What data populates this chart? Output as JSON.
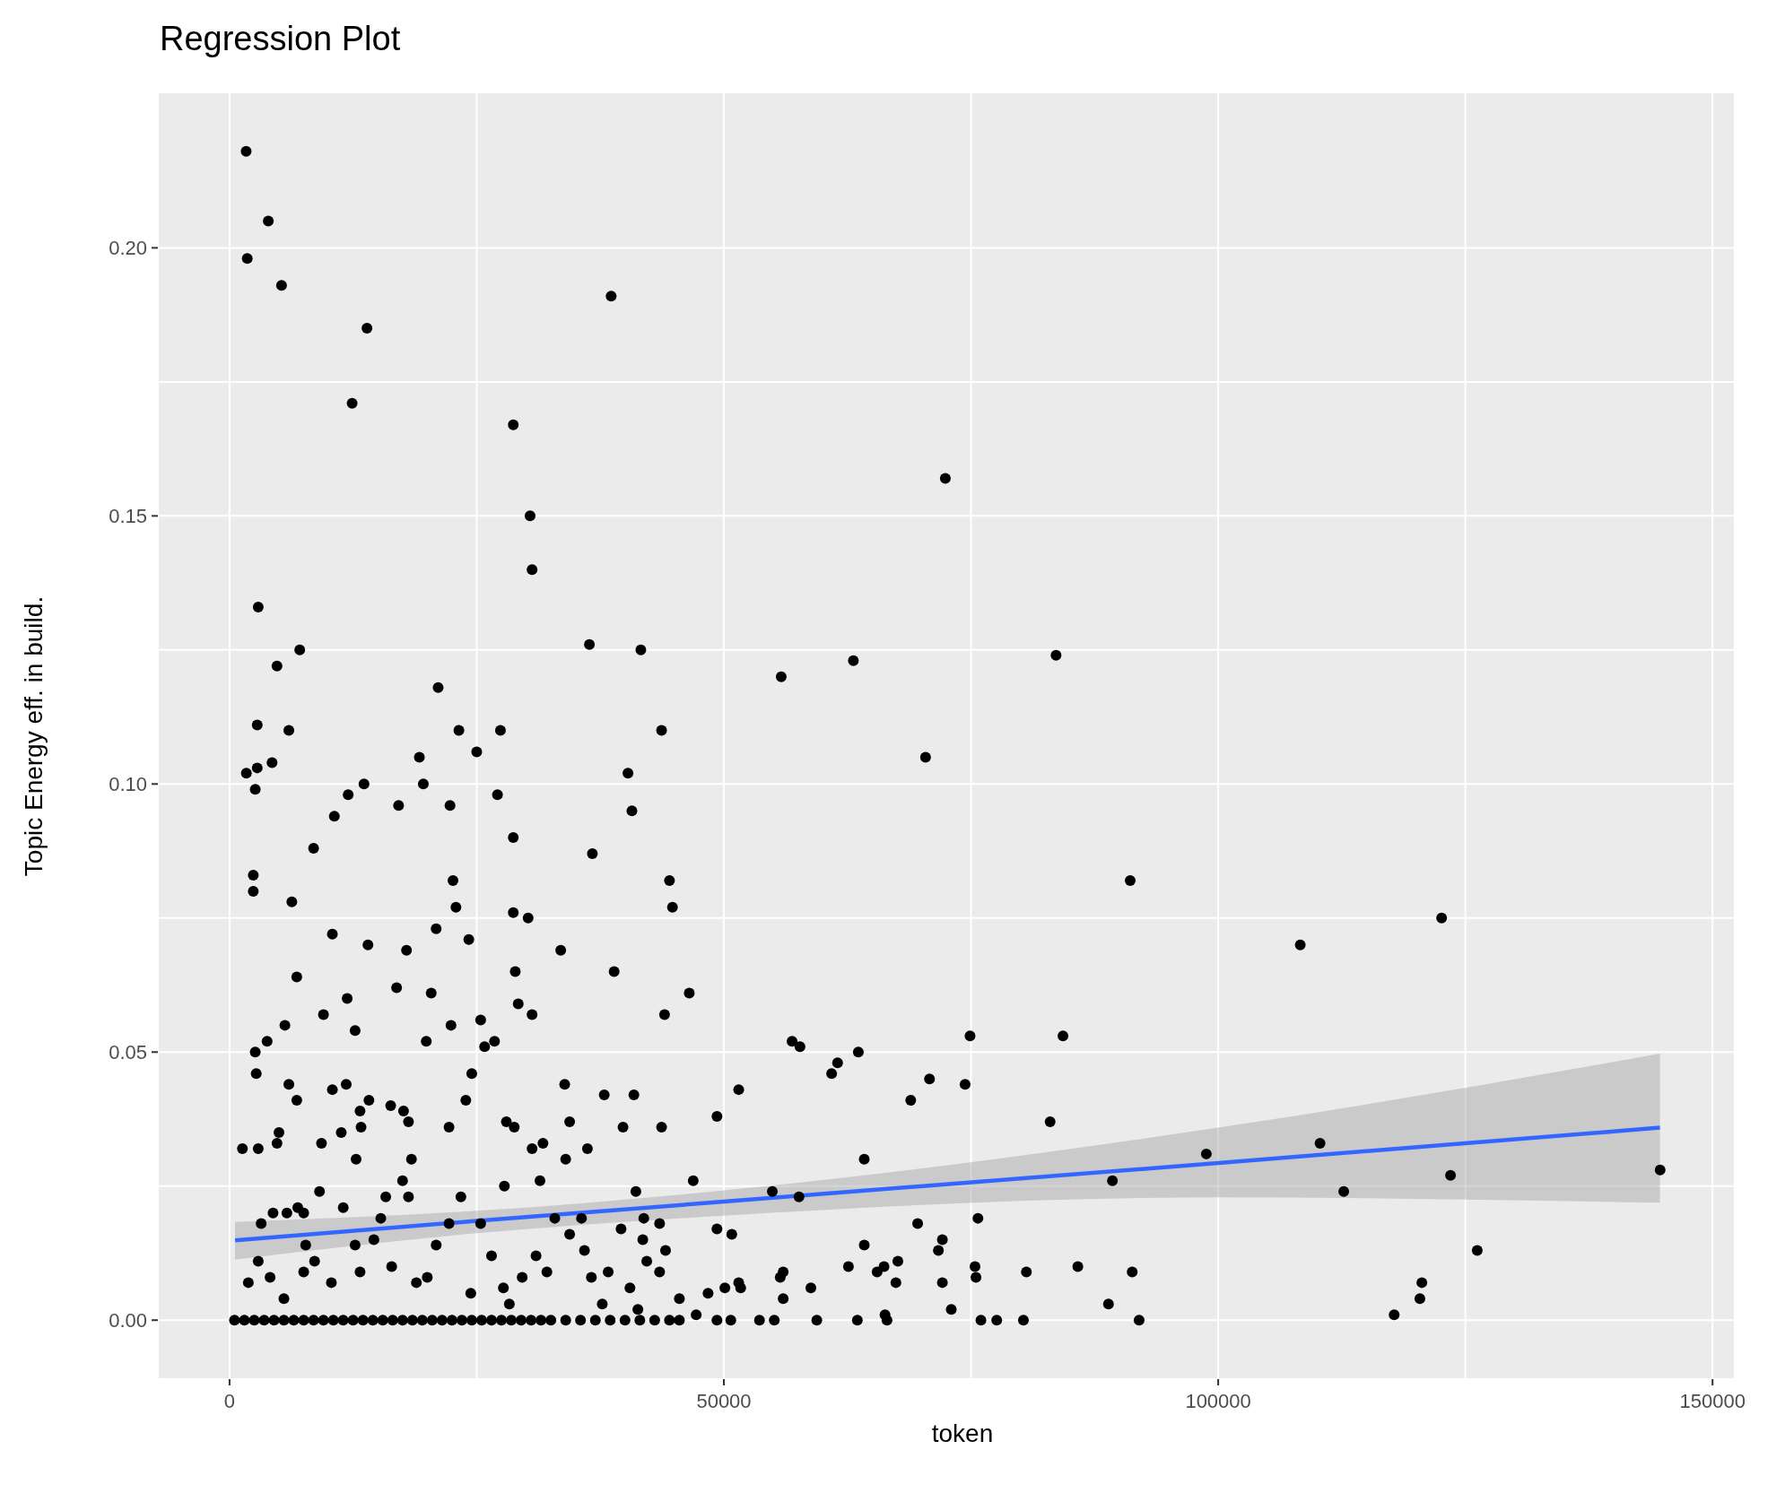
{
  "chart_data": {
    "type": "scatter",
    "title": "Regression Plot",
    "xlabel": "token",
    "ylabel": "Topic Energy eff. in build.",
    "xlim": [
      -7250,
      152250
    ],
    "ylim": [
      -0.011,
      0.229
    ],
    "xticks": [
      0,
      {
        "value": 25000,
        "label": null
      },
      50000,
      {
        "value": 75000,
        "label": null
      },
      100000,
      {
        "value": 125000,
        "label": null
      },
      150000
    ],
    "yticks": [
      {
        "value": 0,
        "label": "0.00"
      },
      {
        "value": 0.025,
        "label": null
      },
      0.05,
      {
        "value": 0.075,
        "label": null
      },
      {
        "value": 0.1,
        "label": "0.10"
      },
      {
        "value": 0.125,
        "label": null
      },
      0.15,
      {
        "value": 0.175,
        "label": null
      },
      {
        "value": 0.2,
        "label": "0.20"
      }
    ],
    "grid": true,
    "legend": false,
    "series": [
      {
        "color": "#000000",
        "marker": "circle",
        "x": [
          1680,
          1790,
          3920,
          5260,
          13900,
          12400,
          38600,
          28700,
          30400,
          30600,
          72400,
          2900,
          7100,
          4800,
          36400,
          41600,
          55800,
          63100,
          83600,
          70400,
          21100,
          2800,
          6000,
          23200,
          27400,
          43700,
          25000,
          19200,
          4300,
          2800,
          1700,
          40300,
          13600,
          19600,
          12000,
          2600,
          27100,
          22300,
          17100,
          40700,
          10600,
          28700,
          8500,
          36700,
          2400,
          2400,
          22600,
          44500,
          91100,
          6300,
          22900,
          44800,
          28700,
          30200,
          122600,
          10400,
          20900,
          24200,
          14000,
          17900,
          33500,
          108300,
          6800,
          28900,
          38900,
          16900,
          20400,
          46500,
          11900,
          29200,
          9500,
          30600,
          25400,
          44000,
          5600,
          22400,
          12700,
          3800,
          19900,
          26800,
          25800,
          74900,
          84300,
          2600,
          56900,
          57700,
          63600,
          61500,
          60900,
          2700,
          24500,
          70800,
          74400,
          33900,
          51500,
          11800,
          6000,
          10400,
          68900,
          40900,
          37900,
          14100,
          6800,
          23900,
          16300,
          17600,
          13200,
          49300,
          18100,
          34400,
          28000,
          28800,
          43700,
          39800,
          83000,
          22200,
          13300,
          11300,
          5000,
          9300,
          4800,
          31700,
          110300,
          2900,
          1300,
          18400,
          36200,
          30600,
          98800,
          89300,
          64200,
          12800,
          123500,
          144700,
          112700,
          46900,
          31400,
          34000,
          27800,
          54900,
          57600,
          126200,
          120600,
          120400,
          117800,
          91300,
          88900,
          92000,
          85800,
          80600,
          80300,
          77600,
          76000,
          75700,
          75400,
          75500,
          73000,
          72100,
          71700,
          72100,
          69600,
          67600,
          67400,
          66200,
          65500,
          66300,
          66500,
          64200,
          62600,
          63500,
          58800,
          59400,
          56000,
          55700,
          56000,
          55100,
          53600,
          51700,
          51500,
          50800,
          49300,
          50100,
          49300,
          50700,
          48400,
          47200,
          45500,
          45500,
          44100,
          43500,
          41900,
          41800,
          42200,
          43500,
          41100,
          39600,
          40500,
          38300,
          36600,
          35900,
          35600,
          34400,
          32900,
          31000,
          29600,
          27700,
          26500,
          25400,
          23400,
          22200,
          20900,
          20000,
          18100,
          17500,
          15800,
          15300,
          14600,
          12700,
          11500,
          9100,
          7500,
          6900,
          5800,
          4400,
          3200,
          7700,
          8600,
          7500,
          4100,
          2900,
          1900,
          5500,
          10300,
          13200,
          16400,
          18900,
          24400,
          28300,
          32100,
          37700,
          41300,
          500,
          1500,
          2500,
          3500,
          4500,
          5500,
          6500,
          7500,
          8500,
          9500,
          10500,
          11500,
          12500,
          13500,
          14500,
          15500,
          16500,
          17500,
          18500,
          19500,
          20500,
          21500,
          22500,
          23500,
          24500,
          25500,
          26500,
          27500,
          28500,
          29500,
          30500,
          31500,
          32500,
          34000,
          35500,
          37000,
          38500,
          40000,
          41500,
          43000,
          44500
        ],
        "values": [
          0.218,
          0.198,
          0.205,
          0.193,
          0.185,
          0.171,
          0.191,
          0.167,
          0.15,
          0.14,
          0.157,
          0.133,
          0.125,
          0.122,
          0.126,
          0.125,
          0.12,
          0.123,
          0.124,
          0.105,
          0.118,
          0.111,
          0.11,
          0.11,
          0.11,
          0.11,
          0.106,
          0.105,
          0.104,
          0.103,
          0.102,
          0.102,
          0.1,
          0.1,
          0.098,
          0.099,
          0.098,
          0.096,
          0.096,
          0.095,
          0.094,
          0.09,
          0.088,
          0.087,
          0.083,
          0.08,
          0.082,
          0.082,
          0.082,
          0.078,
          0.077,
          0.077,
          0.076,
          0.075,
          0.075,
          0.072,
          0.073,
          0.071,
          0.07,
          0.069,
          0.069,
          0.07,
          0.064,
          0.065,
          0.065,
          0.062,
          0.061,
          0.061,
          0.06,
          0.059,
          0.057,
          0.057,
          0.056,
          0.057,
          0.055,
          0.055,
          0.054,
          0.052,
          0.052,
          0.052,
          0.051,
          0.053,
          0.053,
          0.05,
          0.052,
          0.051,
          0.05,
          0.048,
          0.046,
          0.046,
          0.046,
          0.045,
          0.044,
          0.044,
          0.043,
          0.044,
          0.044,
          0.043,
          0.041,
          0.042,
          0.042,
          0.041,
          0.041,
          0.041,
          0.04,
          0.039,
          0.039,
          0.038,
          0.037,
          0.037,
          0.037,
          0.036,
          0.036,
          0.036,
          0.037,
          0.036,
          0.036,
          0.035,
          0.035,
          0.033,
          0.033,
          0.033,
          0.033,
          0.032,
          0.032,
          0.03,
          0.032,
          0.032,
          0.031,
          0.026,
          0.03,
          0.03,
          0.027,
          0.028,
          0.024,
          0.026,
          0.026,
          0.03,
          0.025,
          0.024,
          0.023,
          0.013,
          0.007,
          0.004,
          0.001,
          0.009,
          0.003,
          0.0,
          0.01,
          0.009,
          0.0,
          0.0,
          0.0,
          0.019,
          0.01,
          0.008,
          0.002,
          0.015,
          0.013,
          0.007,
          0.018,
          0.011,
          0.007,
          0.01,
          0.009,
          0.001,
          0.0,
          0.014,
          0.01,
          0.0,
          0.006,
          0.0,
          0.009,
          0.008,
          0.004,
          0.0,
          0.0,
          0.006,
          0.007,
          0.016,
          0.017,
          0.006,
          0.0,
          0.0,
          0.005,
          0.001,
          0.004,
          0.0,
          0.013,
          0.018,
          0.019,
          0.015,
          0.011,
          0.009,
          0.024,
          0.017,
          0.006,
          0.009,
          0.008,
          0.013,
          0.019,
          0.016,
          0.019,
          0.012,
          0.008,
          0.006,
          0.012,
          0.018,
          0.023,
          0.018,
          0.014,
          0.008,
          0.023,
          0.026,
          0.023,
          0.019,
          0.015,
          0.014,
          0.021,
          0.024,
          0.02,
          0.021,
          0.02,
          0.02,
          0.018,
          0.014,
          0.011,
          0.009,
          0.008,
          0.011,
          0.007,
          0.004,
          0.007,
          0.009,
          0.01,
          0.007,
          0.005,
          0.003,
          0.009,
          0.003,
          0.002,
          0,
          0,
          0,
          0,
          0,
          0,
          0,
          0,
          0,
          0,
          0,
          0,
          0,
          0,
          0,
          0,
          0,
          0,
          0,
          0,
          0,
          0,
          0,
          0,
          0,
          0,
          0,
          0,
          0,
          0,
          0,
          0,
          0,
          0,
          0,
          0,
          0,
          0,
          0,
          0,
          0
        ]
      },
      {
        "type": "line",
        "color": "#3366ff",
        "x": [
          560,
          25000,
          50000,
          100000,
          144680
        ],
        "values": [
          0.0149,
          0.0185,
          0.0221,
          0.0293,
          0.0359
        ],
        "lower": [
          0.0113,
          0.0162,
          0.0195,
          0.0229,
          0.0219
        ],
        "upper": [
          0.0183,
          0.0204,
          0.0242,
          0.0359,
          0.0497
        ]
      }
    ]
  }
}
